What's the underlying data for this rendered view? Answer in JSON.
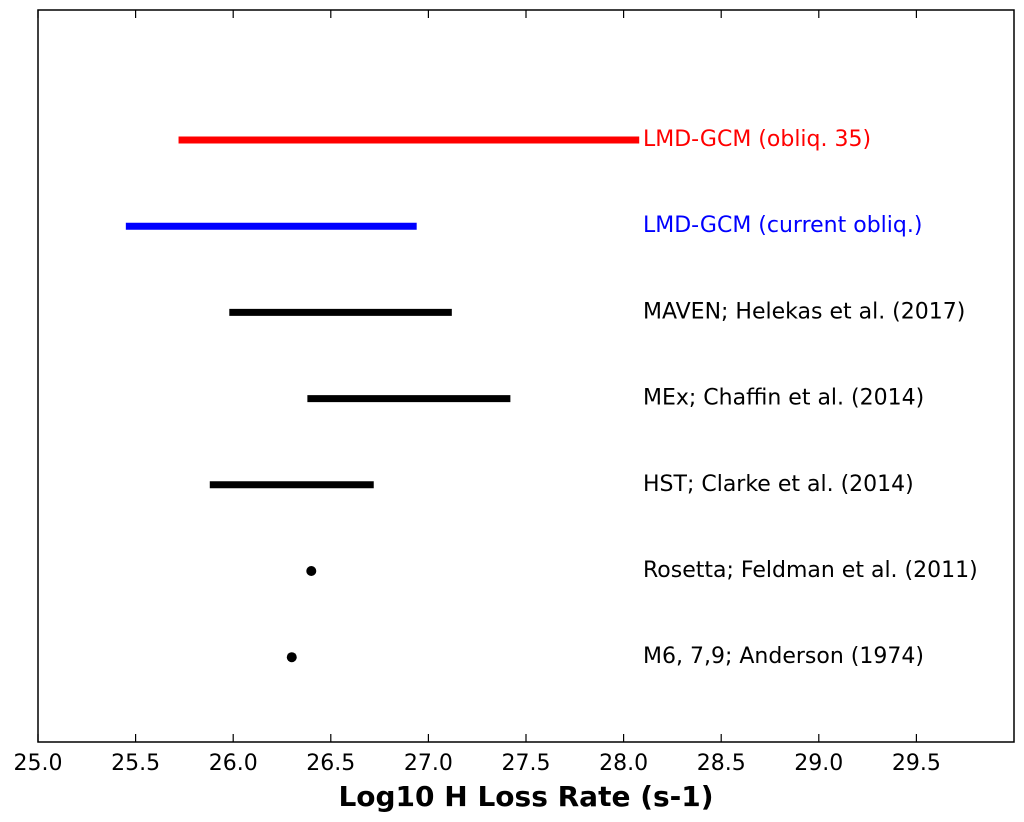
{
  "chart_data": {
    "type": "range",
    "title": "",
    "xlabel": "Log10 H Loss Rate (s-1)",
    "ylabel": "",
    "xlim": [
      25.0,
      30.0
    ],
    "xticks": [
      "25.0",
      "25.5",
      "26.0",
      "26.5",
      "27.0",
      "27.5",
      "28.0",
      "28.5",
      "29.0",
      "29.5"
    ],
    "grid": false,
    "series": [
      {
        "name": "LMD-GCM (obliq. 35)",
        "kind": "range",
        "x_min": 25.72,
        "x_max": 28.08,
        "color": "#ff0000"
      },
      {
        "name": "LMD-GCM (current obliq.)",
        "kind": "range",
        "x_min": 25.45,
        "x_max": 26.94,
        "color": "#0000ff"
      },
      {
        "name": "MAVEN; Helekas et al. (2017)",
        "kind": "range",
        "x_min": 25.98,
        "x_max": 27.12,
        "color": "#000000"
      },
      {
        "name": "MEx; Chaffin et al. (2014)",
        "kind": "range",
        "x_min": 26.38,
        "x_max": 27.42,
        "color": "#000000"
      },
      {
        "name": "HST; Clarke et al. (2014)",
        "kind": "range",
        "x_min": 25.88,
        "x_max": 26.72,
        "color": "#000000"
      },
      {
        "name": "Rosetta; Feldman et al. (2011)",
        "kind": "point",
        "x": 26.4,
        "color": "#000000"
      },
      {
        "name": "M6, 7,9; Anderson (1974)",
        "kind": "point",
        "x": 26.3,
        "color": "#000000"
      }
    ]
  }
}
